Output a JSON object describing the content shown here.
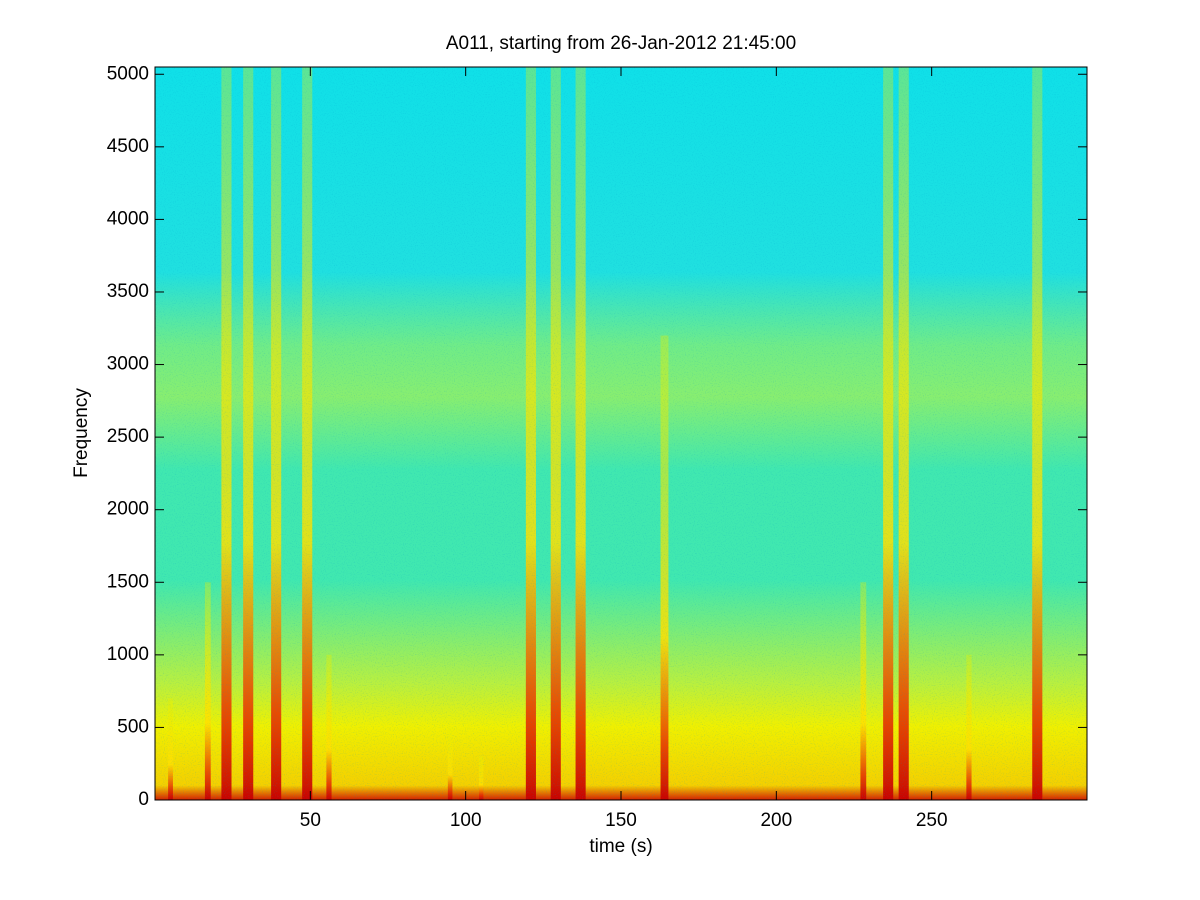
{
  "chart_data": {
    "type": "spectrogram",
    "title": "A011, starting from 26-Jan-2012 21:45:00",
    "x_label": "time (s)",
    "y_label": "Frequency",
    "x": [
      5,
      17,
      23,
      30,
      39,
      49,
      56,
      95,
      105,
      121,
      129,
      137,
      164,
      228,
      236,
      241,
      262,
      284
    ],
    "values": [
      700,
      1500,
      5050,
      5050,
      5050,
      5050,
      1000,
      500,
      300,
      5050,
      5050,
      5050,
      3200,
      1500,
      5050,
      5050,
      1000,
      5050
    ],
    "xlim": [
      0,
      300
    ],
    "ylim": [
      0,
      5050
    ],
    "xticks": [
      50,
      100,
      150,
      200,
      250
    ],
    "yticks": [
      0,
      500,
      1000,
      1500,
      2000,
      2500,
      3000,
      3500,
      4000,
      4500,
      5000
    ]
  }
}
